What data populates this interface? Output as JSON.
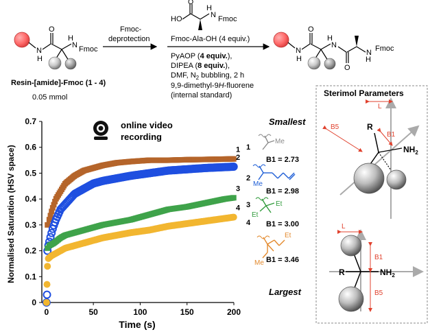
{
  "scheme": {
    "resin_label": "Resin-[amide]-Fmoc (1 - 4)",
    "amount": "0.05 mmol",
    "reagent_top_ho": "HO",
    "reagent_top_nh": "N",
    "reagent_top_h": "H",
    "fmoc": "Fmoc",
    "step1_line1": "Fmoc-",
    "step1_line2": "deprotection",
    "step2_reagent": "Fmoc-Ala-OH (4 equiv.)",
    "cond_pyaop": "PyAOP (",
    "cond_pyaop_bold": "4 equiv.",
    "cond_pyaop_end": "),",
    "cond_dipea": "DIPEA (",
    "cond_dipea_bold": "8 equiv.",
    "cond_dipea_end": "),",
    "cond_dmf": "DMF, N",
    "cond_dmf_sub": "2",
    "cond_dmf_end": " bubbling, 2 h",
    "cond_std1": "9,9-dimethyl-9",
    "cond_std1_it": "H",
    "cond_std1_end": "-fluorene",
    "cond_std2": "(internal standard)",
    "atom_n": "N",
    "atom_h": "H",
    "atom_o": "O"
  },
  "video": {
    "line1": "online video",
    "line2": "recording"
  },
  "ranking": {
    "smallest": "Smallest",
    "largest": "Largest",
    "me": "Me",
    "et": "Et",
    "entries": [
      {
        "id": "1",
        "b1": "B1 = 2.73",
        "color": "#8a8a8a"
      },
      {
        "id": "2",
        "b1": "B1 = 2.98",
        "color": "#1f5fd6"
      },
      {
        "id": "3",
        "b1": "B1 = 3.00",
        "color": "#2f9a3a"
      },
      {
        "id": "4",
        "b1": "B1 = 3.46",
        "color": "#e38a2e"
      }
    ]
  },
  "sterimol": {
    "title": "Sterimol Parameters",
    "L": "L",
    "B1": "B1",
    "B5": "B5",
    "R": "R",
    "NH2": "NH",
    "sub2": "2"
  },
  "chart_data": {
    "type": "scatter",
    "xlabel": "Time (s)",
    "ylabel": "Normalised Saturation (HSV space)",
    "xlim": [
      -5,
      200
    ],
    "ylim": [
      0,
      0.7
    ],
    "xticks": [
      "0",
      "50",
      "100",
      "150",
      "200"
    ],
    "yticks": [
      "0",
      "0.1",
      "0.2",
      "0.3",
      "0.4",
      "0.5",
      "0.6",
      "0.7"
    ],
    "series": [
      {
        "name": "1",
        "color": "#b5652a",
        "marker": "square",
        "points": [
          [
            0,
            0.0
          ],
          [
            1,
            0.3
          ],
          [
            3,
            0.32
          ],
          [
            6,
            0.36
          ],
          [
            10,
            0.4
          ],
          [
            15,
            0.43
          ],
          [
            20,
            0.46
          ],
          [
            30,
            0.49
          ],
          [
            40,
            0.51
          ],
          [
            50,
            0.52
          ],
          [
            60,
            0.53
          ],
          [
            75,
            0.54
          ],
          [
            90,
            0.545
          ],
          [
            110,
            0.55
          ],
          [
            130,
            0.55
          ],
          [
            150,
            0.552
          ],
          [
            170,
            0.553
          ],
          [
            200,
            0.555
          ]
        ]
      },
      {
        "name": "2",
        "color": "#1f4fe0",
        "marker": "circle",
        "points": [
          [
            0,
            0.0
          ],
          [
            0.5,
            0.03
          ],
          [
            1,
            0.2
          ],
          [
            2,
            0.22
          ],
          [
            4,
            0.25
          ],
          [
            7,
            0.29
          ],
          [
            10,
            0.32
          ],
          [
            15,
            0.36
          ],
          [
            20,
            0.38
          ],
          [
            30,
            0.42
          ],
          [
            40,
            0.44
          ],
          [
            50,
            0.46
          ],
          [
            60,
            0.47
          ],
          [
            75,
            0.48
          ],
          [
            90,
            0.49
          ],
          [
            110,
            0.5
          ],
          [
            130,
            0.51
          ],
          [
            150,
            0.515
          ],
          [
            170,
            0.52
          ],
          [
            200,
            0.525
          ]
        ]
      },
      {
        "name": "3",
        "color": "#3fa34a",
        "marker": "square",
        "points": [
          [
            0,
            0.0
          ],
          [
            1,
            0.21
          ],
          [
            3,
            0.22
          ],
          [
            8,
            0.23
          ],
          [
            15,
            0.25
          ],
          [
            20,
            0.26
          ],
          [
            30,
            0.27
          ],
          [
            40,
            0.28
          ],
          [
            50,
            0.29
          ],
          [
            60,
            0.3
          ],
          [
            75,
            0.31
          ],
          [
            90,
            0.32
          ],
          [
            110,
            0.34
          ],
          [
            130,
            0.36
          ],
          [
            150,
            0.37
          ],
          [
            170,
            0.385
          ],
          [
            190,
            0.4
          ],
          [
            200,
            0.405
          ]
        ]
      },
      {
        "name": "4",
        "color": "#f2b630",
        "marker": "circle",
        "points": [
          [
            0,
            0.0
          ],
          [
            0.5,
            0.07
          ],
          [
            1,
            0.14
          ],
          [
            2,
            0.17
          ],
          [
            5,
            0.18
          ],
          [
            10,
            0.19
          ],
          [
            20,
            0.21
          ],
          [
            30,
            0.22
          ],
          [
            40,
            0.23
          ],
          [
            50,
            0.24
          ],
          [
            60,
            0.25
          ],
          [
            75,
            0.26
          ],
          [
            90,
            0.27
          ],
          [
            110,
            0.28
          ],
          [
            130,
            0.295
          ],
          [
            150,
            0.305
          ],
          [
            170,
            0.315
          ],
          [
            200,
            0.33
          ]
        ]
      }
    ]
  }
}
